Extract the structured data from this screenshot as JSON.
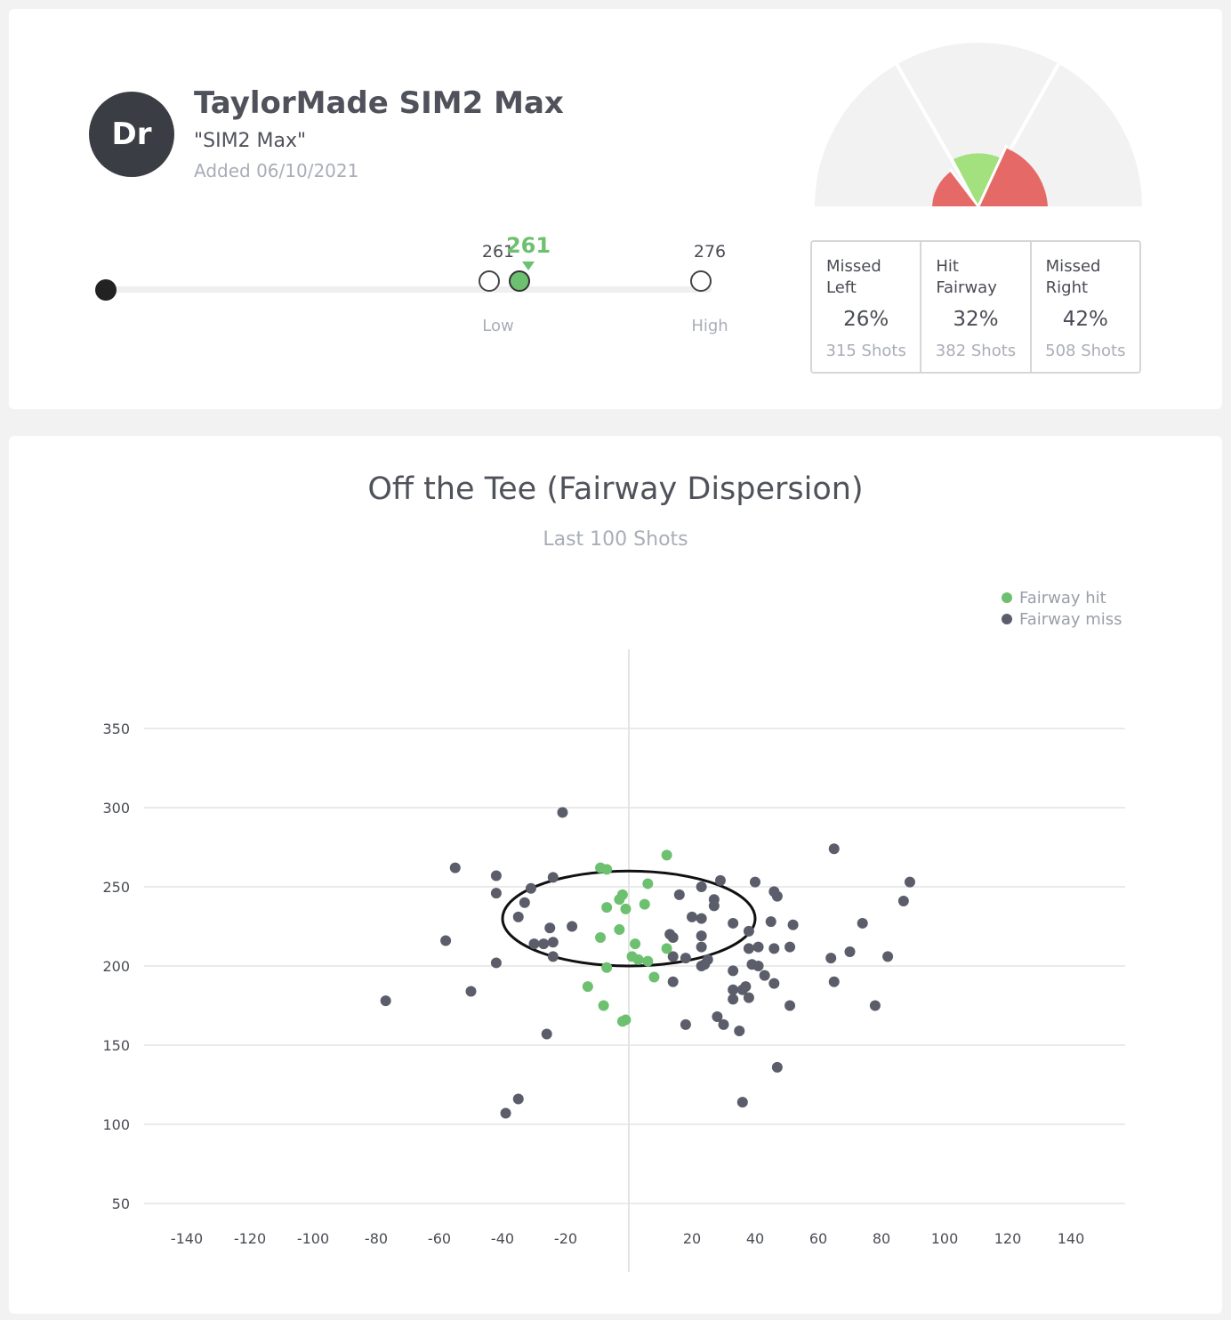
{
  "club": {
    "avatar_text": "Dr",
    "name": "TaylorMade SIM2 Max",
    "model": "\"SIM2 Max\"",
    "added": "Added 06/10/2021"
  },
  "distance": {
    "low_value": "261",
    "high_value": "276",
    "current_value": "261",
    "low_label": "Low",
    "high_label": "High"
  },
  "accuracy": {
    "colors": {
      "hit": "#a3e07e",
      "miss": "#e56a67",
      "background": "#f2f2f2"
    },
    "stats": [
      {
        "label": "Missed Left",
        "pct": "26%",
        "shots": "315 Shots"
      },
      {
        "label": "Hit Fairway",
        "pct": "32%",
        "shots": "382 Shots"
      },
      {
        "label": "Missed Right",
        "pct": "42%",
        "shots": "508 Shots"
      }
    ]
  },
  "chart_data": {
    "type": "scatter",
    "title": "Off the Tee (Fairway Dispersion)",
    "subtitle": "Last 100 Shots",
    "legend_position": "top-right",
    "grid": true,
    "xlim": [
      -155,
      155
    ],
    "ylim": [
      50,
      350
    ],
    "x_ticks": [
      -140,
      -120,
      -100,
      -80,
      -60,
      -40,
      -20,
      20,
      40,
      60,
      80,
      100,
      120,
      140
    ],
    "y_ticks": [
      50,
      100,
      150,
      200,
      250,
      300,
      350
    ],
    "ellipse": {
      "cx": 0,
      "cy": 230,
      "rx": 40,
      "ry": 30
    },
    "series": [
      {
        "name": "Fairway hit",
        "color": "#6cc070",
        "points": [
          [
            12,
            270
          ],
          [
            -9,
            262
          ],
          [
            -7,
            261
          ],
          [
            6,
            252
          ],
          [
            -2,
            245
          ],
          [
            -3,
            242
          ],
          [
            -7,
            237
          ],
          [
            -1,
            236
          ],
          [
            5,
            239
          ],
          [
            -3,
            223
          ],
          [
            -9,
            218
          ],
          [
            2,
            214
          ],
          [
            12,
            211
          ],
          [
            1,
            206
          ],
          [
            3,
            204
          ],
          [
            6,
            203
          ],
          [
            -7,
            199
          ],
          [
            8,
            193
          ],
          [
            -13,
            187
          ],
          [
            -8,
            175
          ],
          [
            -2,
            165
          ],
          [
            -1,
            166
          ]
        ]
      },
      {
        "name": "Fairway miss",
        "color": "#5b5e6a",
        "points": [
          [
            -21,
            297
          ],
          [
            -55,
            262
          ],
          [
            -42,
            257
          ],
          [
            -24,
            256
          ],
          [
            -42,
            246
          ],
          [
            -31,
            249
          ],
          [
            -33,
            240
          ],
          [
            -35,
            231
          ],
          [
            -25,
            224
          ],
          [
            -18,
            225
          ],
          [
            -58,
            216
          ],
          [
            -30,
            214
          ],
          [
            -27,
            214
          ],
          [
            -24,
            215
          ],
          [
            -24,
            206
          ],
          [
            -42,
            202
          ],
          [
            -50,
            184
          ],
          [
            -77,
            178
          ],
          [
            -26,
            157
          ],
          [
            -35,
            116
          ],
          [
            -39,
            107
          ],
          [
            65,
            274
          ],
          [
            89,
            253
          ],
          [
            87,
            241
          ],
          [
            29,
            254
          ],
          [
            40,
            253
          ],
          [
            23,
            250
          ],
          [
            16,
            245
          ],
          [
            27,
            242
          ],
          [
            27,
            238
          ],
          [
            46,
            247
          ],
          [
            47,
            244
          ],
          [
            33,
            227
          ],
          [
            20,
            231
          ],
          [
            23,
            230
          ],
          [
            45,
            228
          ],
          [
            52,
            226
          ],
          [
            38,
            222
          ],
          [
            13,
            220
          ],
          [
            14,
            218
          ],
          [
            23,
            219
          ],
          [
            41,
            212
          ],
          [
            38,
            211
          ],
          [
            46,
            211
          ],
          [
            51,
            212
          ],
          [
            23,
            212
          ],
          [
            74,
            227
          ],
          [
            70,
            209
          ],
          [
            64,
            205
          ],
          [
            82,
            206
          ],
          [
            14,
            206
          ],
          [
            18,
            205
          ],
          [
            25,
            204
          ],
          [
            23,
            200
          ],
          [
            24,
            201
          ],
          [
            39,
            201
          ],
          [
            41,
            200
          ],
          [
            33,
            197
          ],
          [
            43,
            194
          ],
          [
            46,
            189
          ],
          [
            65,
            190
          ],
          [
            14,
            190
          ],
          [
            33,
            185
          ],
          [
            36,
            185
          ],
          [
            37,
            187
          ],
          [
            38,
            180
          ],
          [
            33,
            179
          ],
          [
            51,
            175
          ],
          [
            78,
            175
          ],
          [
            28,
            168
          ],
          [
            30,
            163
          ],
          [
            35,
            159
          ],
          [
            18,
            163
          ],
          [
            47,
            136
          ],
          [
            36,
            114
          ]
        ]
      }
    ]
  }
}
